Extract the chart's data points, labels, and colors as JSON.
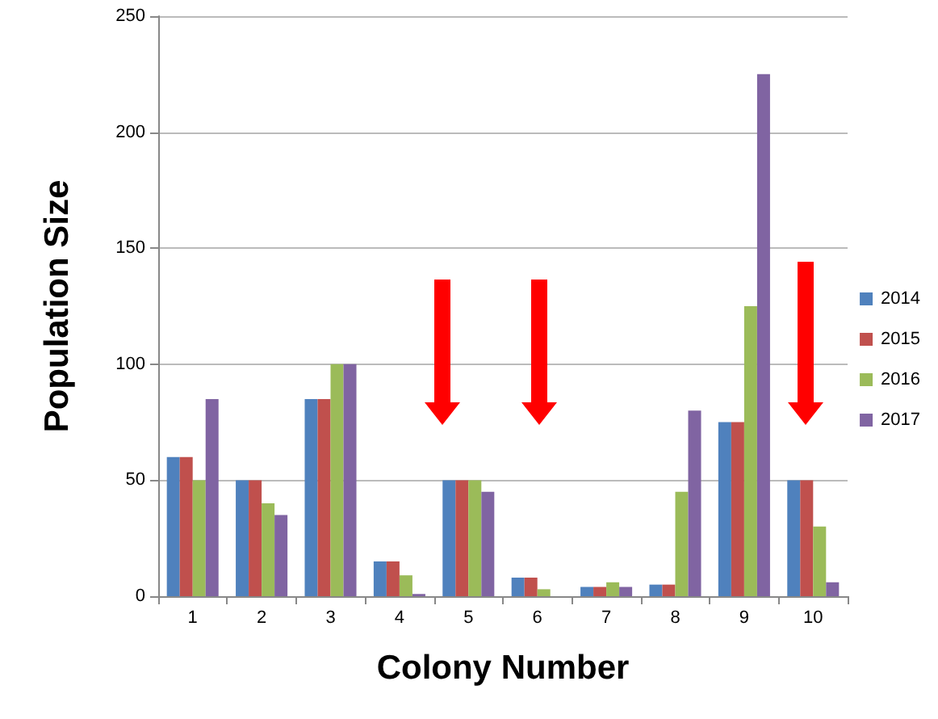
{
  "chart_data": {
    "type": "bar",
    "xlabel": "Colony Number",
    "ylabel": "Population Size",
    "categories": [
      "1",
      "2",
      "3",
      "4",
      "5",
      "6",
      "7",
      "8",
      "9",
      "10"
    ],
    "series": [
      {
        "name": "2014",
        "color": "#4f81bd",
        "values": [
          60,
          50,
          85,
          15,
          50,
          8,
          4,
          5,
          75,
          50
        ]
      },
      {
        "name": "2015",
        "color": "#c0504d",
        "values": [
          60,
          50,
          85,
          15,
          50,
          8,
          4,
          5,
          75,
          50
        ]
      },
      {
        "name": "2016",
        "color": "#9bbb59",
        "values": [
          50,
          40,
          100,
          9,
          50,
          3,
          6,
          45,
          125,
          30
        ]
      },
      {
        "name": "2017",
        "color": "#8064a2",
        "values": [
          85,
          35,
          100,
          1,
          45,
          0,
          4,
          80,
          225,
          6
        ]
      }
    ],
    "ylim": [
      0,
      250
    ],
    "yticks": [
      0,
      50,
      100,
      150,
      200,
      250
    ],
    "grid": "y",
    "legend": "right"
  }
}
